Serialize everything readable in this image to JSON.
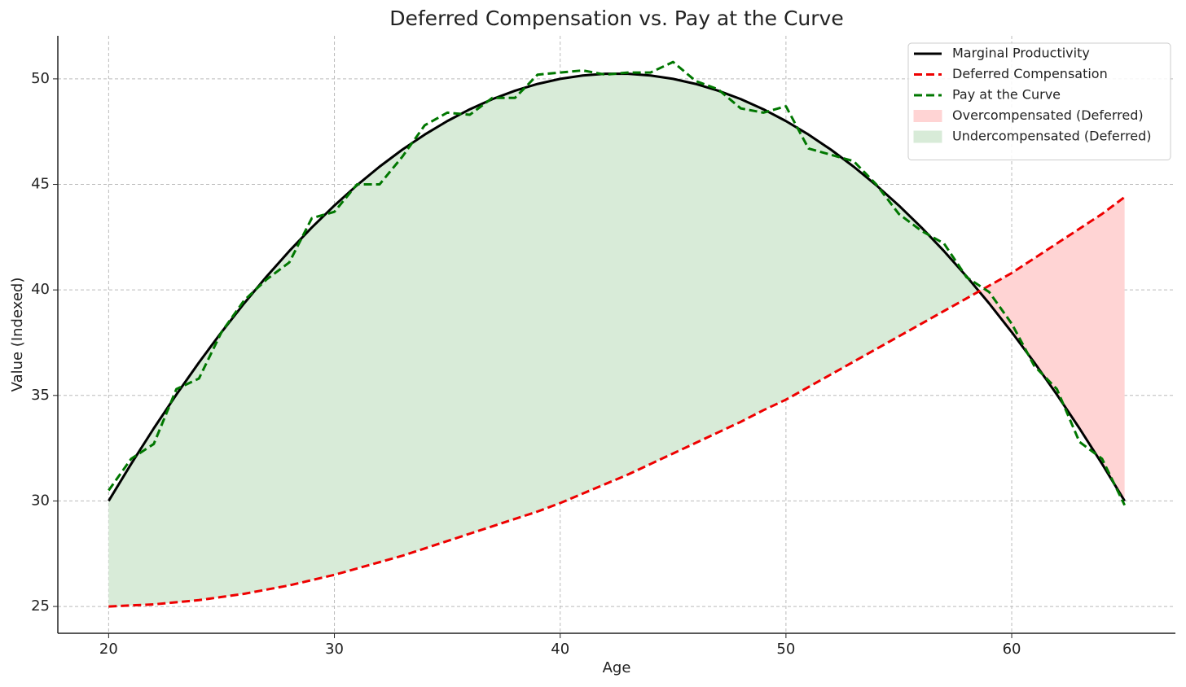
{
  "chart_data": {
    "type": "line",
    "title": "Deferred Compensation vs. Pay at the Curve",
    "x_label": "Age",
    "y_label": "Value (Indexed)",
    "x": [
      20,
      21,
      22,
      23,
      24,
      25,
      26,
      27,
      28,
      29,
      30,
      31,
      32,
      33,
      34,
      35,
      36,
      37,
      38,
      39,
      40,
      41,
      42,
      43,
      44,
      45,
      46,
      47,
      48,
      49,
      50,
      51,
      52,
      53,
      54,
      55,
      56,
      57,
      58,
      59,
      60,
      61,
      62,
      63,
      64,
      65
    ],
    "series": [
      {
        "name": "Marginal Productivity",
        "color": "#000000",
        "style": "solid",
        "values": [
          30.0,
          31.76,
          33.44,
          35.04,
          36.56,
          38.0,
          39.36,
          40.64,
          41.84,
          42.96,
          44.0,
          44.96,
          45.84,
          46.64,
          47.36,
          48.0,
          48.56,
          49.04,
          49.44,
          49.76,
          50.0,
          50.16,
          50.24,
          50.24,
          50.16,
          50.0,
          49.76,
          49.44,
          49.04,
          48.56,
          48.0,
          47.36,
          46.64,
          45.84,
          44.96,
          44.0,
          42.96,
          41.84,
          40.64,
          39.36,
          38.0,
          36.56,
          35.04,
          33.44,
          31.76,
          30.0
        ]
      },
      {
        "name": "Deferred Compensation",
        "color": "#ee0000",
        "style": "dashed",
        "values": [
          25.0,
          25.05,
          25.1,
          25.2,
          25.3,
          25.45,
          25.6,
          25.8,
          26.0,
          26.25,
          26.5,
          26.8,
          27.1,
          27.4,
          27.75,
          28.1,
          28.45,
          28.8,
          29.15,
          29.5,
          29.9,
          30.35,
          30.8,
          31.25,
          31.75,
          32.25,
          32.75,
          33.25,
          33.75,
          34.3,
          34.8,
          35.4,
          36.0,
          36.6,
          37.2,
          37.8,
          38.4,
          39.0,
          39.6,
          40.2,
          40.8,
          41.5,
          42.2,
          42.9,
          43.6,
          44.4
        ]
      },
      {
        "name": "Pay at the Curve",
        "color": "#007700",
        "style": "dashed",
        "values": [
          30.5,
          32.0,
          32.7,
          35.3,
          35.8,
          38.0,
          39.5,
          40.5,
          41.3,
          43.4,
          43.7,
          45.0,
          45.0,
          46.3,
          47.8,
          48.4,
          48.3,
          49.1,
          49.1,
          50.2,
          50.3,
          50.4,
          50.2,
          50.3,
          50.3,
          50.8,
          49.9,
          49.5,
          48.6,
          48.4,
          48.7,
          46.7,
          46.4,
          46.1,
          45.0,
          43.6,
          42.8,
          42.2,
          40.6,
          39.9,
          38.4,
          36.4,
          35.3,
          32.8,
          32.0,
          29.8
        ]
      }
    ],
    "fills": [
      {
        "name": "Overcompensated (Deferred)",
        "color": "#ffd4d4",
        "when": "below"
      },
      {
        "name": "Undercompensated (Deferred)",
        "color": "#d8ebd8",
        "when": "above"
      }
    ],
    "xlim": [
      17.75,
      67.25
    ],
    "ylim": [
      23.73,
      52.04
    ],
    "xticks": [
      20,
      30,
      40,
      50,
      60
    ],
    "yticks": [
      25,
      30,
      35,
      40,
      45,
      50
    ],
    "grid": true,
    "legend": "upper right"
  }
}
